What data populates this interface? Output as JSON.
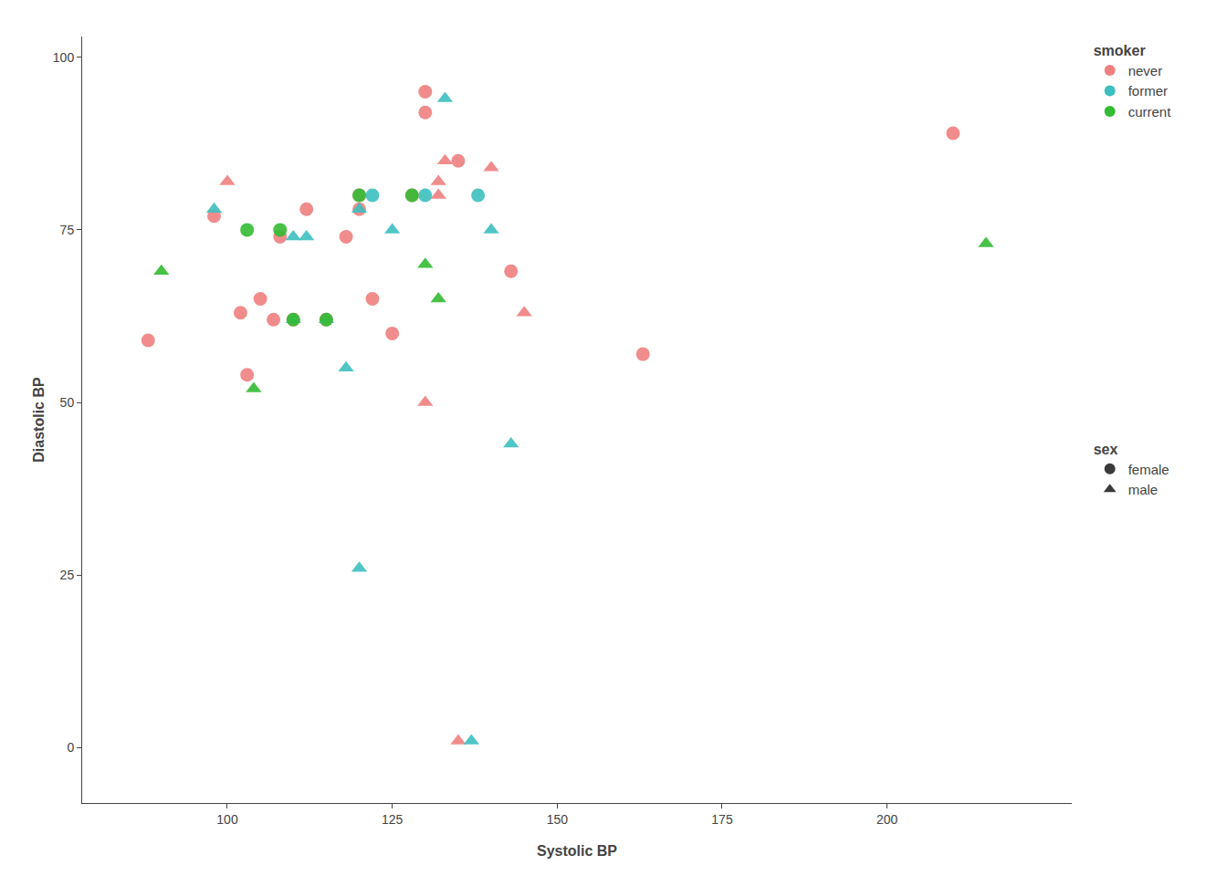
{
  "chart_data": {
    "type": "scatter",
    "xlabel": "Systolic BP",
    "ylabel": "Diastolic BP",
    "xlim": [
      78,
      228
    ],
    "ylim": [
      -8,
      103
    ],
    "xticks": [
      100,
      125,
      150,
      175,
      200
    ],
    "yticks": [
      0,
      25,
      50,
      75,
      100
    ],
    "grid": false,
    "legend": "right",
    "legend_title": "smoker",
    "series": [
      {
        "name": "never",
        "color": "#F08080",
        "x": [
          88,
          98,
          100,
          102,
          103,
          105,
          107,
          108,
          110,
          112,
          115,
          118,
          120,
          120,
          122,
          125,
          128,
          130,
          130,
          132,
          132,
          133,
          135,
          140,
          143,
          145,
          163,
          210,
          130,
          135
        ],
        "values": [
          59,
          77,
          82,
          63,
          54,
          65,
          62,
          74,
          62,
          78,
          62,
          74,
          80,
          78,
          65,
          60,
          80,
          95,
          92,
          80,
          82,
          85,
          85,
          84,
          69,
          63,
          57,
          89,
          50,
          1
        ],
        "sex": [
          "female",
          "female",
          "male",
          "female",
          "female",
          "female",
          "female",
          "female",
          "female",
          "female",
          "female",
          "female",
          "female",
          "female",
          "female",
          "female",
          "female",
          "female",
          "female",
          "male",
          "male",
          "male",
          "female",
          "male",
          "female",
          "male",
          "female",
          "female",
          "male",
          "male"
        ]
      },
      {
        "name": "former",
        "color": "#3DBFBF",
        "x": [
          98,
          110,
          110,
          112,
          115,
          118,
          120,
          122,
          125,
          130,
          133,
          138,
          140,
          143,
          120,
          137
        ],
        "values": [
          78,
          62,
          74,
          74,
          62,
          55,
          78,
          80,
          75,
          80,
          94,
          80,
          75,
          44,
          26,
          1
        ],
        "sex": [
          "male",
          "male",
          "male",
          "male",
          "male",
          "male",
          "male",
          "female",
          "male",
          "female",
          "male",
          "female",
          "male",
          "male",
          "male",
          "male"
        ]
      },
      {
        "name": "current",
        "color": "#33BB33",
        "x": [
          90,
          103,
          104,
          108,
          110,
          115,
          120,
          128,
          130,
          132,
          215
        ],
        "values": [
          69,
          75,
          52,
          75,
          62,
          62,
          80,
          80,
          70,
          65,
          73
        ],
        "sex": [
          "male",
          "female",
          "male",
          "female",
          "female",
          "female",
          "female",
          "female",
          "male",
          "male",
          "male"
        ]
      }
    ],
    "sex_legend": {
      "title": "sex",
      "color": "#3a3a3a",
      "categories": [
        "female",
        "male"
      ],
      "markers": [
        "circle",
        "triangle-up"
      ]
    }
  }
}
